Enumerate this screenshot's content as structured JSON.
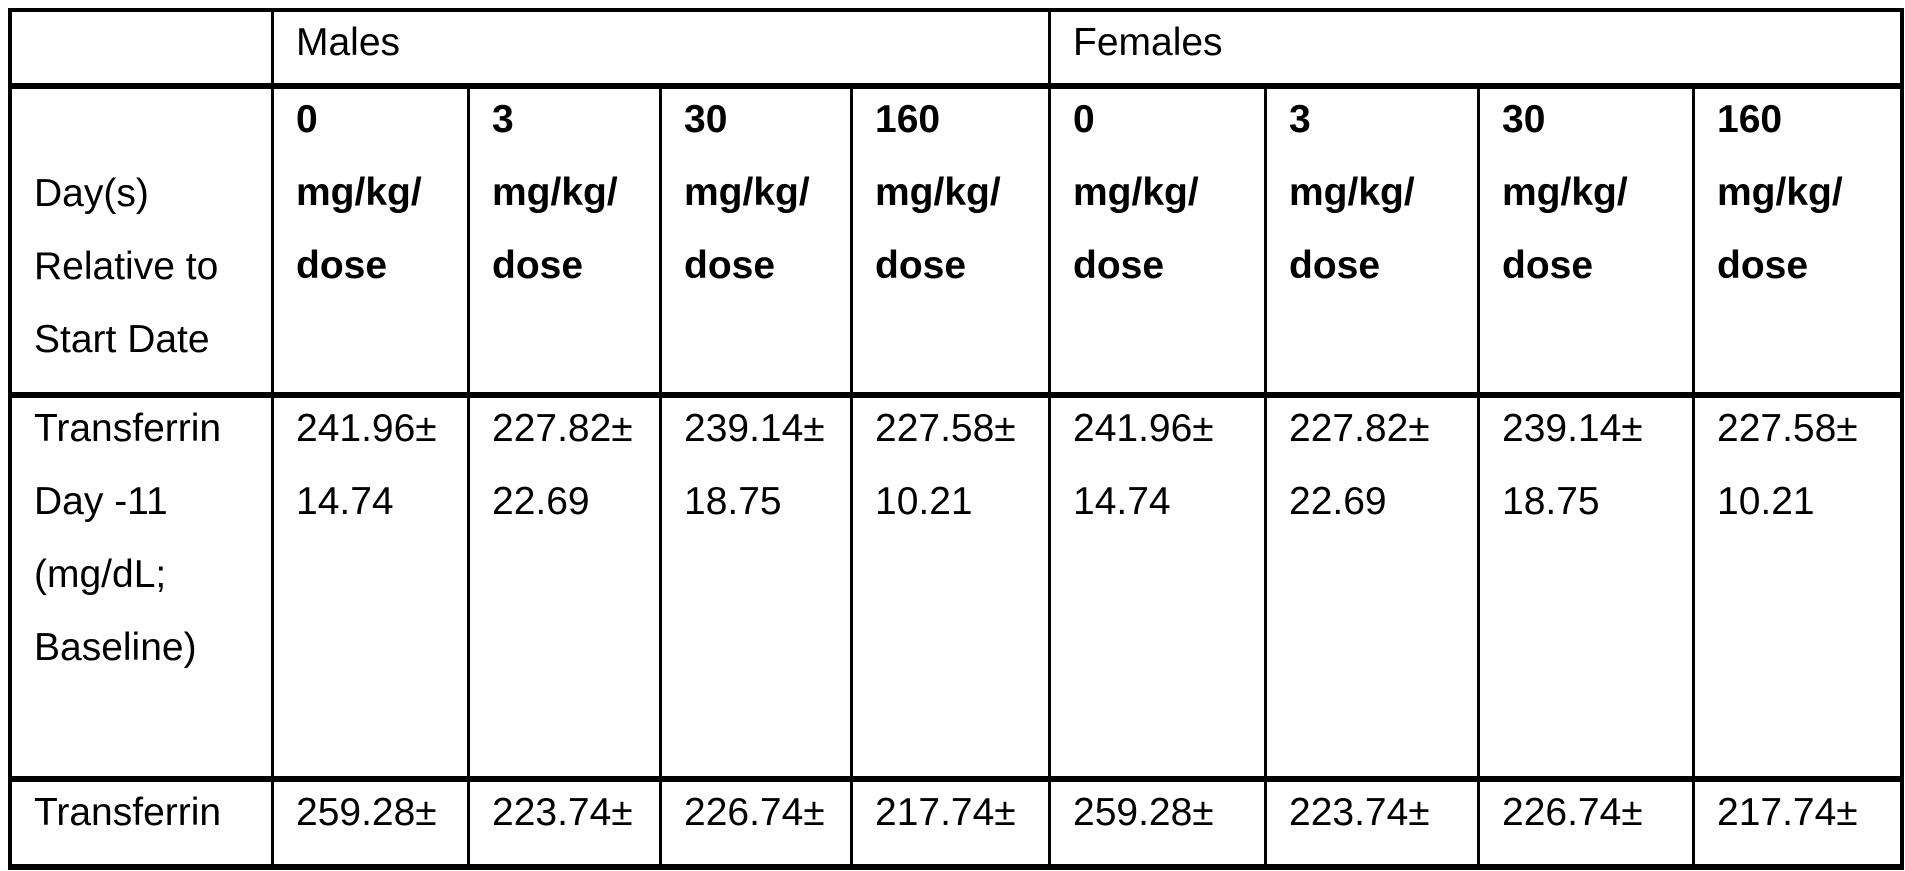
{
  "header": {
    "corner": "",
    "males": "Males",
    "females": "Females",
    "day_label": "Day(s)\nRelative to\nStart Date",
    "dose_headers": {
      "males": [
        "0\nmg/kg/\ndose",
        "3\nmg/kg/\ndose",
        "30\nmg/kg/\ndose",
        "160\nmg/kg/\ndose"
      ],
      "females": [
        "0\nmg/kg/\ndose",
        "3\nmg/kg/\ndose",
        "30\nmg/kg/\ndose",
        "160\nmg/kg/\ndose"
      ]
    }
  },
  "rows": [
    {
      "label": "Transferrin\nDay -11\n(mg/dL;\nBaseline)",
      "males": [
        "241.96±\n14.74",
        "227.82±\n22.69",
        "239.14±\n18.75",
        "227.58±\n10.21"
      ],
      "females": [
        "241.96±\n14.74",
        "227.82±\n22.69",
        "239.14±\n18.75",
        "227.58±\n10.21"
      ]
    },
    {
      "label": "Transferrin",
      "males": [
        "259.28±",
        "223.74±",
        "226.74±",
        "217.74±"
      ],
      "females": [
        "259.28±",
        "223.74±",
        "226.74±",
        "217.74±"
      ]
    }
  ],
  "colors": {
    "text": "#000000",
    "border": "#000000",
    "background": "#ffffff"
  }
}
